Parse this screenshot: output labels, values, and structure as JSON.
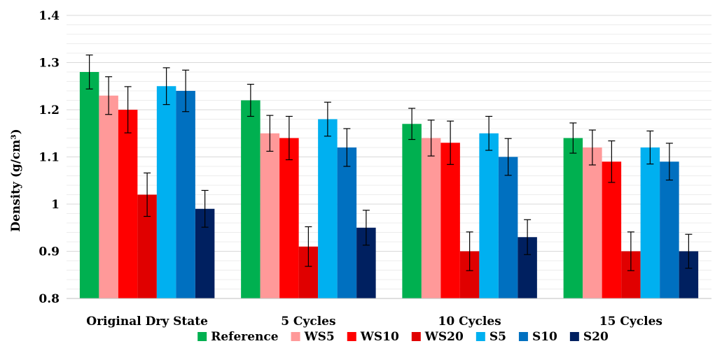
{
  "chart_data": {
    "type": "bar",
    "title": "",
    "xlabel": "",
    "ylabel": "Density (g/cm³)",
    "ylim": [
      0.8,
      1.4
    ],
    "yticks": [
      "0.8",
      "0.9",
      "1",
      "1.1",
      "1.2",
      "1.3",
      "1.4"
    ],
    "grid": true,
    "legend_position": "bottom",
    "categories": [
      "Original Dry State",
      "5 Cycles",
      "10 Cycles",
      "15 Cycles"
    ],
    "series": [
      {
        "name": "Reference",
        "color": "#00b050",
        "values": [
          1.28,
          1.22,
          1.17,
          1.14
        ],
        "errors": [
          0.036,
          0.034,
          0.033,
          0.032
        ]
      },
      {
        "name": "WS5",
        "color": "#ff9999",
        "values": [
          1.23,
          1.15,
          1.14,
          1.12
        ],
        "errors": [
          0.04,
          0.038,
          0.038,
          0.037
        ]
      },
      {
        "name": "WS10",
        "color": "#ff0000",
        "values": [
          1.2,
          1.14,
          1.13,
          1.09
        ],
        "errors": [
          0.049,
          0.046,
          0.046,
          0.044
        ]
      },
      {
        "name": "WS20",
        "color": "#e00000",
        "values": [
          1.02,
          0.91,
          0.9,
          0.9
        ],
        "errors": [
          0.046,
          0.042,
          0.041,
          0.041
        ]
      },
      {
        "name": "S5",
        "color": "#00b0f0",
        "values": [
          1.25,
          1.18,
          1.15,
          1.12
        ],
        "errors": [
          0.039,
          0.036,
          0.036,
          0.035
        ]
      },
      {
        "name": "S10",
        "color": "#0070c0",
        "values": [
          1.24,
          1.12,
          1.1,
          1.09
        ],
        "errors": [
          0.044,
          0.04,
          0.039,
          0.039
        ]
      },
      {
        "name": "S20",
        "color": "#002060",
        "values": [
          0.99,
          0.95,
          0.93,
          0.9
        ],
        "errors": [
          0.039,
          0.037,
          0.037,
          0.036
        ]
      }
    ]
  }
}
